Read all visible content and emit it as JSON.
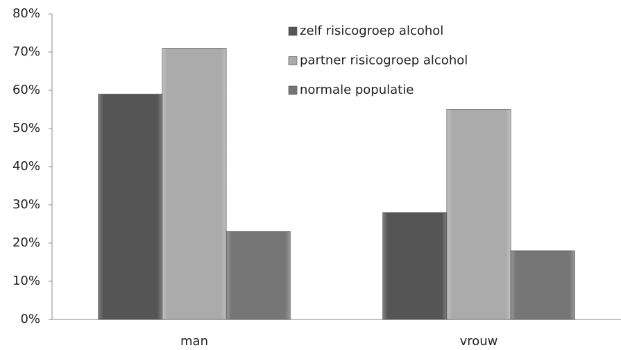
{
  "chart_data": {
    "type": "bar",
    "categories": [
      "man",
      "vrouw"
    ],
    "series": [
      {
        "name": "zelf risicogroep alcohol",
        "color": "#555555",
        "values": [
          59,
          28
        ]
      },
      {
        "name": "partner risicogroep alcohol",
        "color": "#ababab",
        "values": [
          71,
          55
        ]
      },
      {
        "name": "normale populatie",
        "color": "#767676",
        "values": [
          23,
          18
        ]
      }
    ],
    "ylim": [
      0,
      80
    ],
    "yticks": [
      {
        "value": 0,
        "label": "0%"
      },
      {
        "value": 10,
        "label": "10%"
      },
      {
        "value": 20,
        "label": "20%"
      },
      {
        "value": 30,
        "label": "30%"
      },
      {
        "value": 40,
        "label": "40%"
      },
      {
        "value": 50,
        "label": "50%"
      },
      {
        "value": 60,
        "label": "60%"
      },
      {
        "value": 70,
        "label": "70%"
      },
      {
        "value": 80,
        "label": "80%"
      }
    ],
    "legend": "top"
  }
}
